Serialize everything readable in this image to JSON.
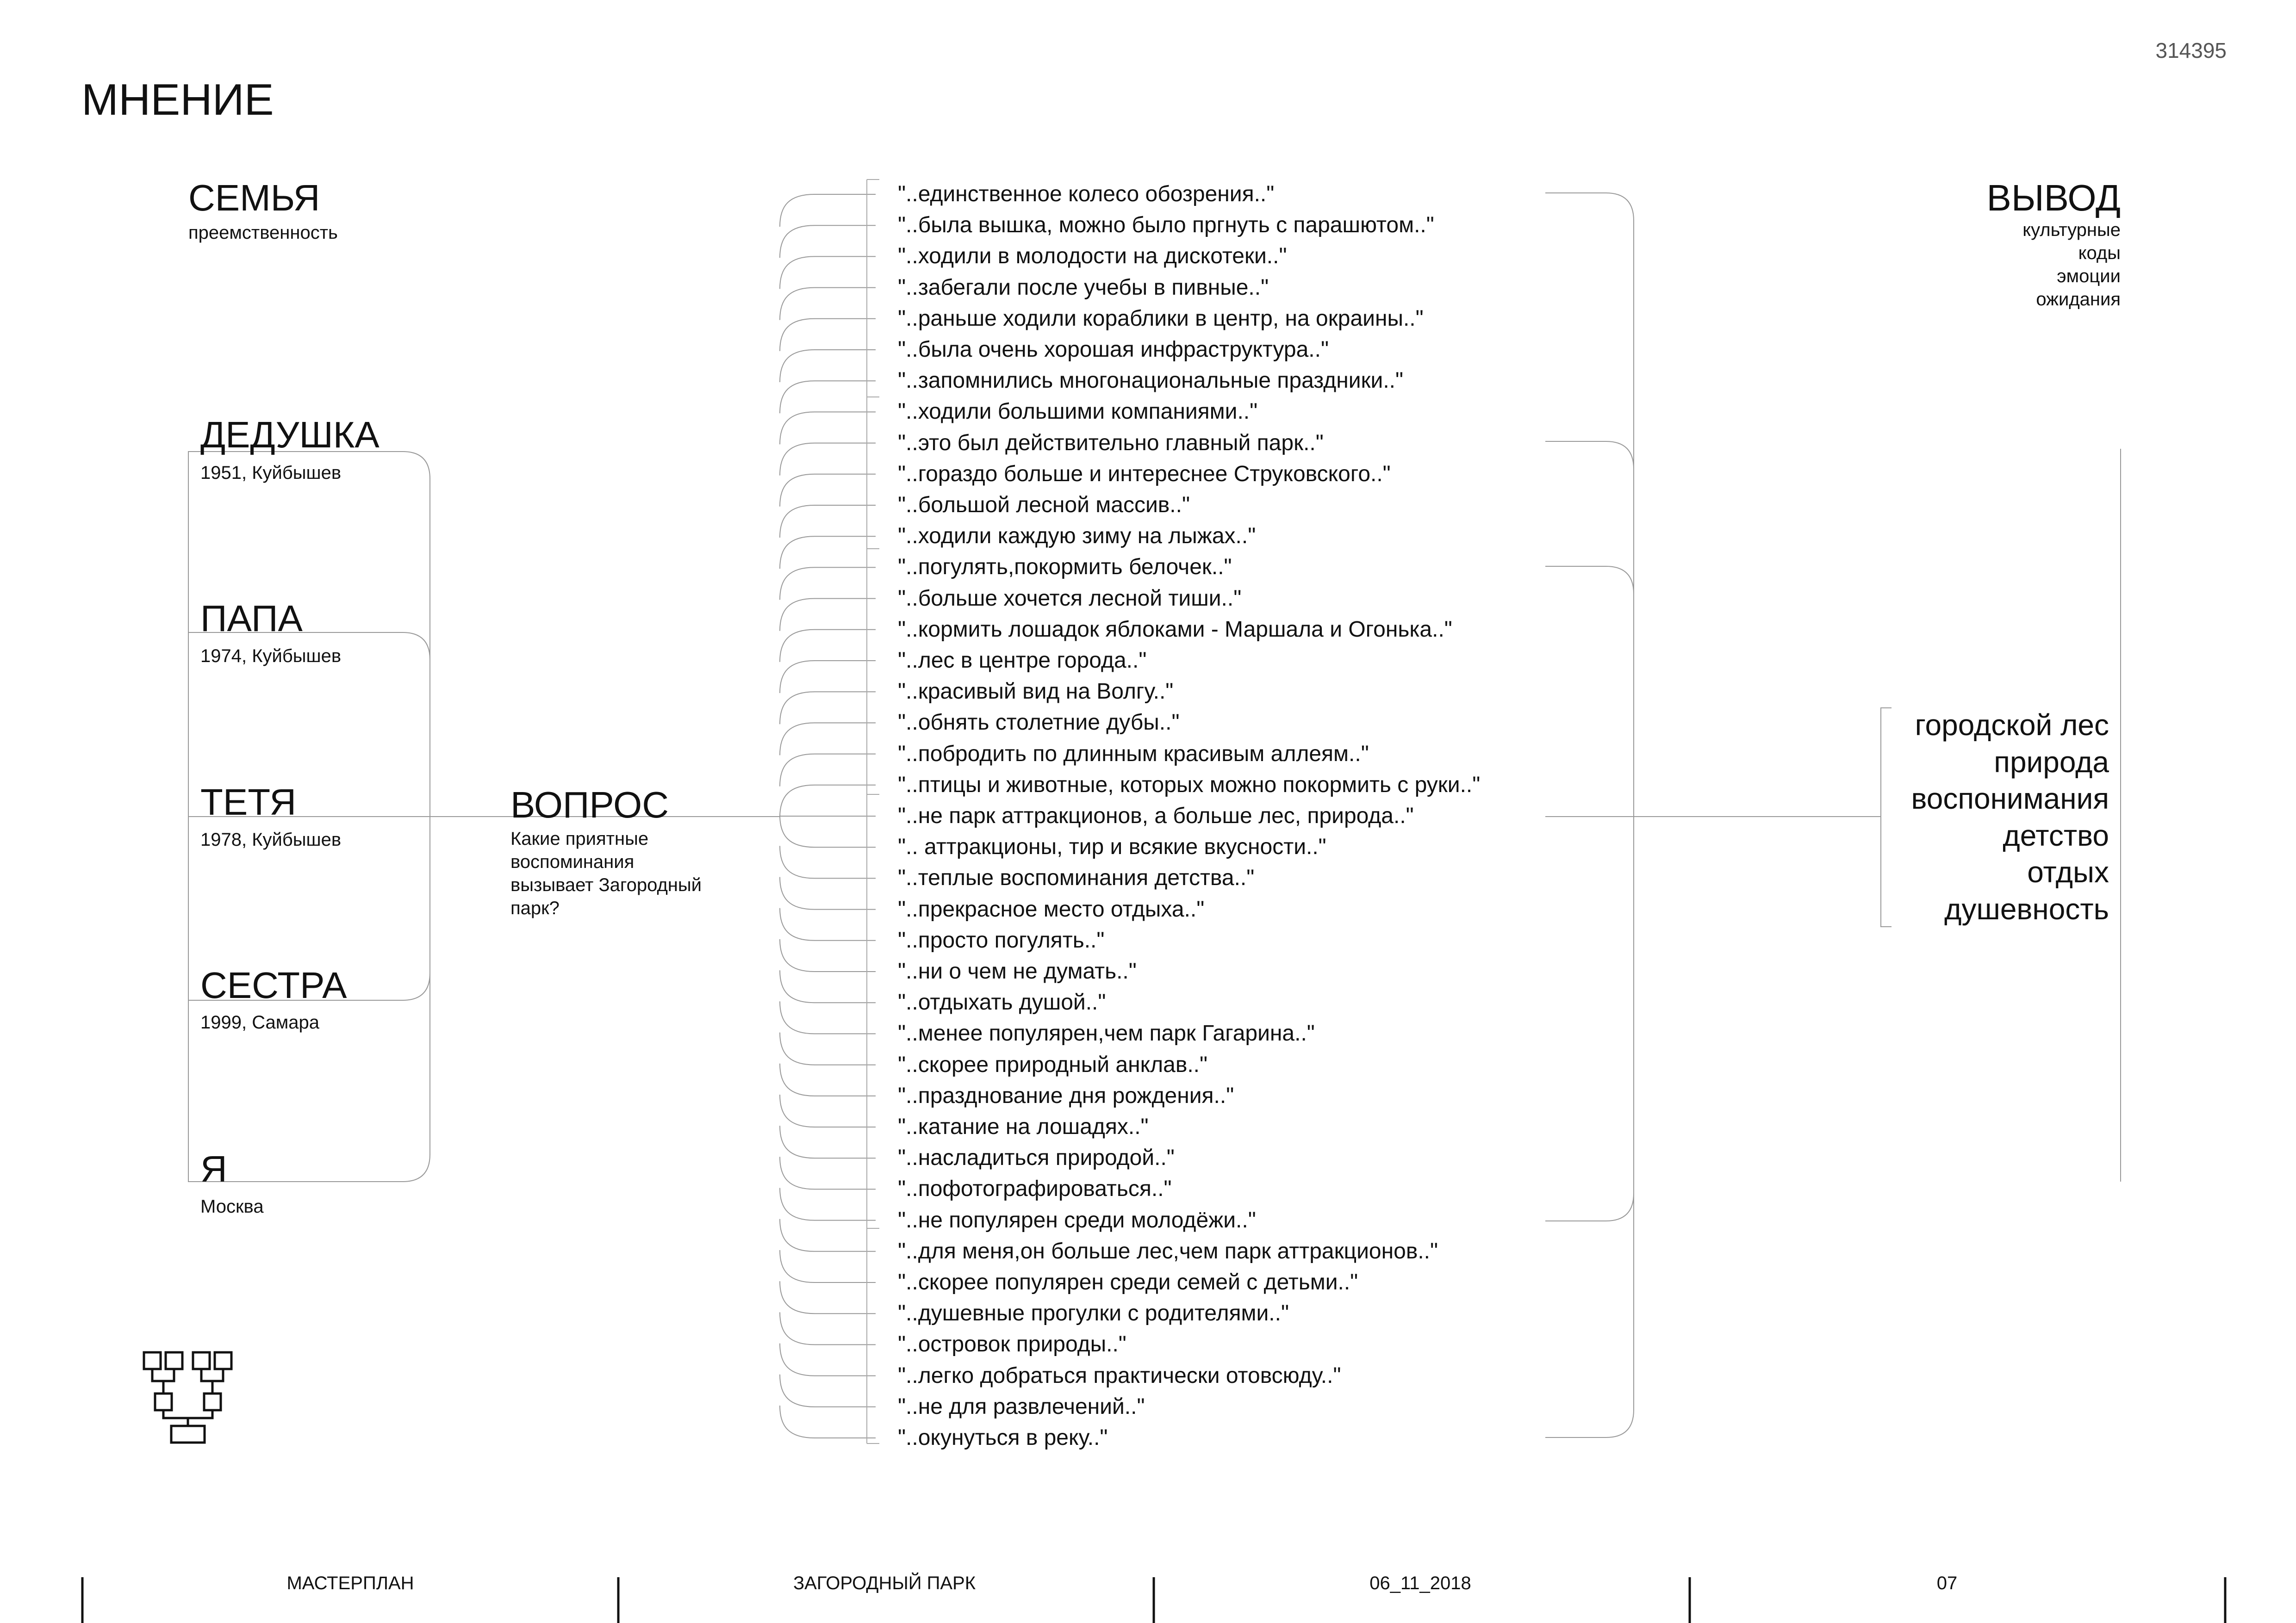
{
  "page_number": "314395",
  "title": "МНЕНИЕ",
  "family": {
    "heading": "СЕМЬЯ",
    "subheading": "преемственность",
    "members": [
      {
        "name": "ДЕДУШКА",
        "info": "1951, Куйбышев"
      },
      {
        "name": "ПАПА",
        "info": "1974, Куйбышев"
      },
      {
        "name": "ТЕТЯ",
        "info": "1978, Куйбышев"
      },
      {
        "name": "СЕСТРА",
        "info": "1999, Самара"
      },
      {
        "name": "Я",
        "info": "Москва"
      }
    ]
  },
  "question": {
    "heading": "ВОПРОС",
    "lines": [
      "Какие приятные",
      "воспоминания",
      "вызывает Загородный",
      "парк?"
    ]
  },
  "quotes": [
    "\"..единственное колесо обозрения..\"",
    "\"..была вышка, можно было пргнуть с парашютом..\"",
    "\"..ходили в молодости на дискотеки..\"",
    "\"..забегали после учебы в пивные..\"",
    "\"..раньше ходили кораблики в центр, на окраины..\"",
    "\"..была очень хорошая инфраструктура..\"",
    "\"..запомнились многонациональные праздники..\"",
    "\"..ходили большими компаниями..\"",
    "\"..это был действительно главный парк..\"",
    "\"..гораздо больше и интереснее Струковского..\"",
    "\"..большой лесной массив..\"",
    "\"..ходили каждую зиму на лыжах..\"",
    "\"..погулять,покормить белочек..\"",
    "\"..больше хочется лесной тиши..\"",
    "\"..кормить лошадок яблоками - Маршала и Огонька..\"",
    "\"..лес в центре города..\"",
    "\"..красивый вид на Волгу..\"",
    "\"..обнять столетние дубы..\"",
    "\"..побродить по длинным красивым аллеям..\"",
    "\"..птицы и животные, которых можно покормить с руки..\"",
    "\"..не парк аттракционов, а больше лес, природа..\"",
    "\".. аттракционы, тир и всякие вкусности..\"",
    "\"..теплые воспоминания детства..\"",
    "\"..прекрасное место отдыха..\"",
    "\"..просто погулять..\"",
    "\"..ни о чем не думать..\"",
    "\"..отдыхать душой..\"",
    "\"..менее популярен,чем парк Гагарина..\"",
    "\"..скорее природный анклав..\"",
    "\"..празднование дня рождения..\"",
    "\"..катание на лошадях..\"",
    "\"..насладиться природой..\"",
    "\"..пофотографироваться..\"",
    "\"..не популярен среди молодёжи..\"",
    "\"..для меня,он больше лес,чем парк аттракционов..\"",
    "\"..скорее популярен среди семей с детьми..\"",
    "\"..душевные прогулки с родителями..\"",
    "\"..островок природы..\"",
    "\"..легко добраться практически отовсюду..\"",
    "\"..не для развлечений..\"",
    "\"..окунуться в реку..\""
  ],
  "conclusion": {
    "heading": "ВЫВОД",
    "subs": [
      "культурные",
      "коды",
      "эмоции",
      "ожидания"
    ],
    "outcomes": [
      "городской лес",
      "природа",
      "воспонимания",
      "детство",
      "отдых",
      "душевность"
    ]
  },
  "footer": [
    "МАСТЕРПЛАН",
    "ЗАГОРОДНЫЙ ПАРК",
    "06_11_2018",
    "07"
  ],
  "icons": {
    "family_tree": "family-tree-icon"
  },
  "colors": {
    "text": "#111111",
    "lines": "#9a9a9a"
  }
}
